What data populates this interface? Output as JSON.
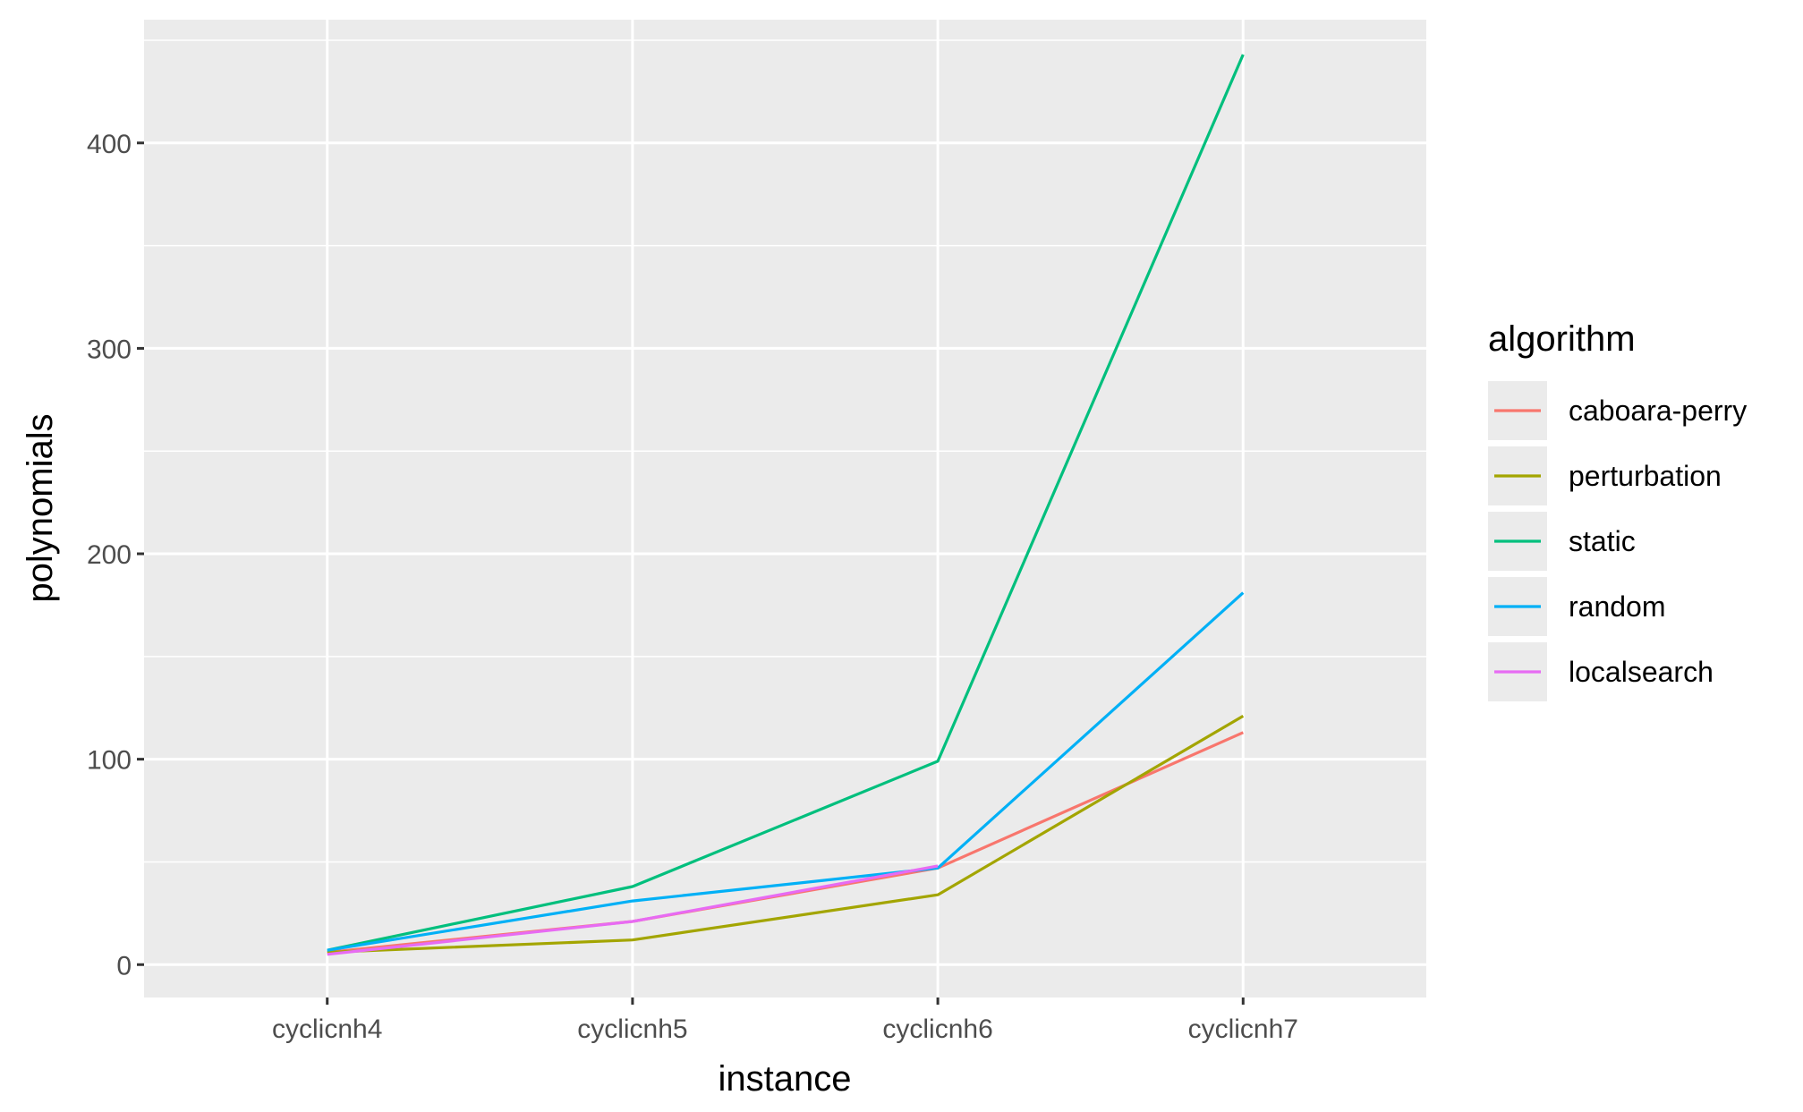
{
  "chart_data": {
    "type": "line",
    "xlabel": "instance",
    "ylabel": "polynomials",
    "categories": [
      "cyclicnh4",
      "cyclicnh5",
      "cyclicnh6",
      "cyclicnh7"
    ],
    "y_ticks": [
      0,
      100,
      200,
      300,
      400
    ],
    "ylim": [
      -16,
      460
    ],
    "grid": true,
    "legend": {
      "title": "algorithm",
      "position": "right",
      "entries": [
        "caboara-perry",
        "perturbation",
        "static",
        "random",
        "localsearch"
      ]
    },
    "series": [
      {
        "name": "caboara-perry",
        "color": "#F8766D",
        "values": [
          6,
          21,
          47,
          113
        ]
      },
      {
        "name": "perturbation",
        "color": "#A3A500",
        "values": [
          6,
          12,
          34,
          121
        ]
      },
      {
        "name": "static",
        "color": "#00BF7D",
        "values": [
          7,
          38,
          99,
          443
        ]
      },
      {
        "name": "random",
        "color": "#00B0F6",
        "values": [
          7,
          31,
          47,
          181
        ]
      },
      {
        "name": "localsearch",
        "color": "#E76BF3",
        "values": [
          5,
          21,
          48,
          null
        ]
      }
    ]
  }
}
